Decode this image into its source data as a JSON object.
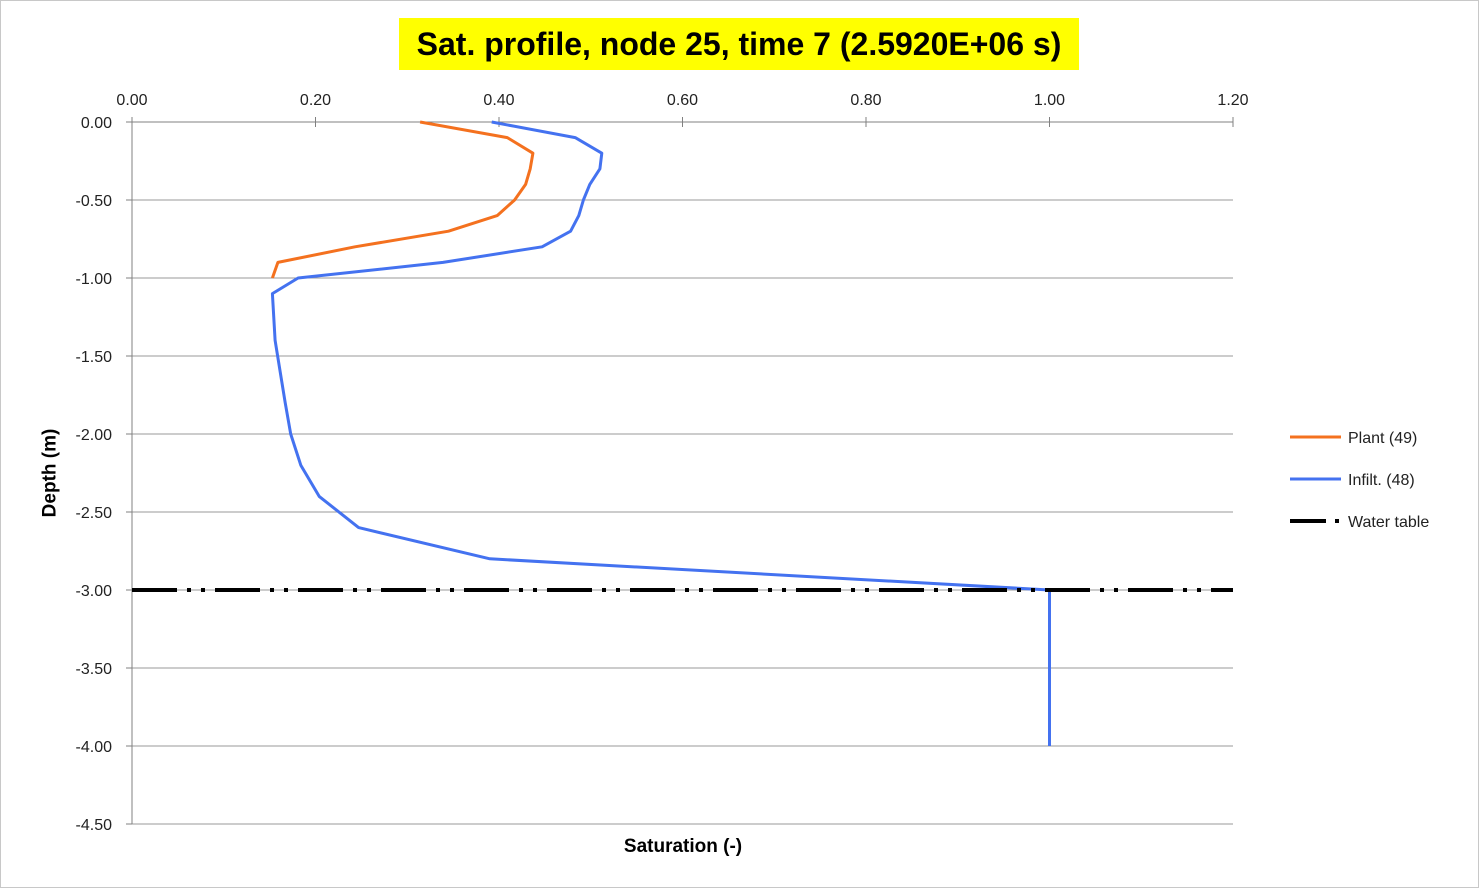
{
  "chart_data": {
    "type": "line",
    "title": "Sat. profile, node 25, time 7 (2.5920E+06 s)",
    "title_highlight": "#FFFF00",
    "xlabel": "Saturation (-)",
    "ylabel": "Depth (m)",
    "xlim": [
      0,
      1.2
    ],
    "ylim": [
      -4.5,
      0
    ],
    "x_axis_position": "top",
    "x_ticks": [
      "0.00",
      "0.20",
      "0.40",
      "0.60",
      "0.80",
      "1.00",
      "1.20"
    ],
    "y_ticks": [
      "0.00",
      "-0.50",
      "-1.00",
      "-1.50",
      "-2.00",
      "-2.50",
      "-3.00",
      "-3.50",
      "-4.00",
      "-4.50"
    ],
    "grid": "horizontal",
    "gridline_color": "#9A9A9A",
    "legend_position": "right",
    "series": [
      {
        "name": "Plant (49)",
        "color": "#F4711F",
        "style": "solid",
        "points": [
          [
            0.314,
            0.0
          ],
          [
            0.409,
            -0.1
          ],
          [
            0.437,
            -0.2
          ],
          [
            0.434,
            -0.3
          ],
          [
            0.429,
            -0.4
          ],
          [
            0.417,
            -0.5
          ],
          [
            0.398,
            -0.6
          ],
          [
            0.345,
            -0.7
          ],
          [
            0.243,
            -0.8
          ],
          [
            0.159,
            -0.9
          ],
          [
            0.153,
            -1.0
          ]
        ]
      },
      {
        "name": "Infilt. (48)",
        "color": "#4472F0",
        "style": "solid",
        "points": [
          [
            0.392,
            0.0
          ],
          [
            0.483,
            -0.1
          ],
          [
            0.512,
            -0.2
          ],
          [
            0.51,
            -0.3
          ],
          [
            0.499,
            -0.4
          ],
          [
            0.492,
            -0.5
          ],
          [
            0.487,
            -0.6
          ],
          [
            0.478,
            -0.7
          ],
          [
            0.447,
            -0.8
          ],
          [
            0.339,
            -0.9
          ],
          [
            0.181,
            -1.0
          ],
          [
            0.153,
            -1.1
          ],
          [
            0.156,
            -1.4
          ],
          [
            0.167,
            -1.8
          ],
          [
            0.173,
            -2.0
          ],
          [
            0.184,
            -2.2
          ],
          [
            0.204,
            -2.4
          ],
          [
            0.247,
            -2.6
          ],
          [
            0.39,
            -2.8
          ],
          [
            1.0,
            -3.0
          ],
          [
            1.0,
            -4.0
          ]
        ]
      },
      {
        "name": "Water table",
        "color": "#000000",
        "style": "dash-dot-dot",
        "points": [
          [
            0.0,
            -3.0
          ],
          [
            1.2,
            -3.0
          ]
        ]
      }
    ]
  }
}
